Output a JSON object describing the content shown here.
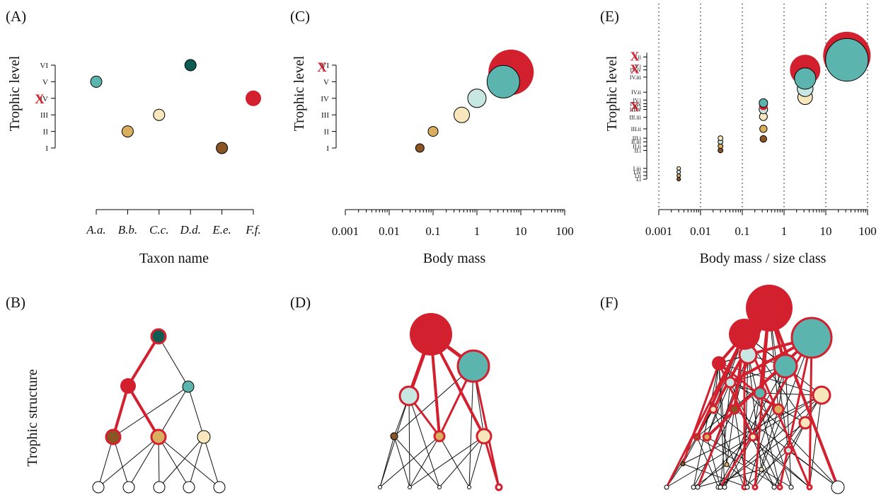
{
  "colors": {
    "red": "#d3202f",
    "teal": "#5bb5ae",
    "dark_teal": "#0d5c52",
    "light_teal": "#c8e7e3",
    "cream": "#f8e6bc",
    "tan": "#d9ae5f",
    "brown": "#8a5424",
    "white": "#ffffff",
    "grid": "#222222"
  },
  "chart_data": [
    {
      "panel": "(A)",
      "type": "scatter",
      "xlabel": "Taxon name",
      "ylabel": "Trophic level",
      "categories": [
        "A.a.",
        "B.b.",
        "C.c.",
        "D.d.",
        "E.e.",
        "F.f."
      ],
      "y_ticks": [
        {
          "value": 1,
          "label": "I"
        },
        {
          "value": 2,
          "label": "II"
        },
        {
          "value": 3,
          "label": "III"
        },
        {
          "value": 4,
          "label": "IV"
        },
        {
          "value": 5,
          "label": "V"
        },
        {
          "value": 6,
          "label": "VI"
        }
      ],
      "y_marker": {
        "value": 4,
        "label": "X"
      },
      "points": [
        {
          "category": "A.a.",
          "level": 5,
          "color": "teal"
        },
        {
          "category": "B.b.",
          "level": 2,
          "color": "tan"
        },
        {
          "category": "C.c.",
          "level": 3,
          "color": "cream"
        },
        {
          "category": "D.d.",
          "level": 6,
          "color": "dark_teal"
        },
        {
          "category": "E.e.",
          "level": 1,
          "color": "brown"
        },
        {
          "category": "F.f.",
          "level": 4,
          "color": "red",
          "no_border": true
        }
      ]
    },
    {
      "panel": "(C)",
      "type": "scatter",
      "xlabel": "Body mass",
      "ylabel": "Trophic level",
      "xscale": "log",
      "xlim": [
        0.001,
        100
      ],
      "x_ticks": [
        {
          "value": 0.001,
          "label": "0.001"
        },
        {
          "value": 0.01,
          "label": "0.01"
        },
        {
          "value": 0.1,
          "label": "0.1"
        },
        {
          "value": 1,
          "label": "1"
        },
        {
          "value": 10,
          "label": "10"
        },
        {
          "value": 100,
          "label": "100"
        }
      ],
      "y_ticks": [
        {
          "value": 1,
          "label": "I"
        },
        {
          "value": 2,
          "label": "II"
        },
        {
          "value": 3,
          "label": "III"
        },
        {
          "value": 4,
          "label": "IV"
        },
        {
          "value": 5,
          "label": "V"
        },
        {
          "value": 6,
          "label": "VI"
        }
      ],
      "y_marker": {
        "value": 6,
        "label": "X"
      },
      "points": [
        {
          "x": 0.05,
          "level": 1,
          "color": "brown"
        },
        {
          "x": 0.1,
          "level": 2,
          "color": "tan"
        },
        {
          "x": 0.45,
          "level": 3,
          "color": "cream"
        },
        {
          "x": 1.0,
          "level": 4,
          "color": "light_teal"
        },
        {
          "x": 6.0,
          "level": 6,
          "color": "red",
          "no_border": true
        },
        {
          "x": 4.0,
          "level": 5,
          "color": "teal"
        }
      ]
    },
    {
      "panel": "(E)",
      "type": "scatter",
      "xlabel": "Body mass / size class",
      "ylabel": "Trophic level",
      "xscale": "log",
      "xlim": [
        0.001,
        100
      ],
      "grid": "vertical dotted",
      "x_ticks": [
        {
          "value": 0.001,
          "label": "0.001"
        },
        {
          "value": 0.01,
          "label": "0.01"
        },
        {
          "value": 0.1,
          "label": "0.1"
        },
        {
          "value": 1,
          "label": "1"
        },
        {
          "value": 10,
          "label": "10"
        },
        {
          "value": 100,
          "label": "100"
        }
      ],
      "y_ticks": [
        {
          "value": 1.0,
          "label": "I.i"
        },
        {
          "value": 1.25,
          "label": "I.ii"
        },
        {
          "value": 1.5,
          "label": "I.iv"
        },
        {
          "value": 1.75,
          "label": "I.iii"
        },
        {
          "value": 3.0,
          "label": "II.i"
        },
        {
          "value": 3.3,
          "label": "II.ii"
        },
        {
          "value": 3.6,
          "label": "II.iii"
        },
        {
          "value": 3.85,
          "label": "III.i"
        },
        {
          "value": 4.5,
          "label": "III.ii"
        },
        {
          "value": 5.3,
          "label": "III.iii"
        },
        {
          "value": 5.85,
          "label": "III.iv"
        },
        {
          "value": 6.05,
          "label": "IV.i"
        },
        {
          "value": 6.25,
          "label": "IV.iv"
        },
        {
          "value": 6.5,
          "label": "IV.i"
        },
        {
          "value": 7.05,
          "label": "IV.ii"
        },
        {
          "value": 8.1,
          "label": "IV.iii"
        },
        {
          "value": 8.6,
          "label": "IV.iv"
        },
        {
          "value": 8.85,
          "label": "V.i"
        },
        {
          "value": 9.5,
          "label": "V.ii"
        }
      ],
      "y_markers": [
        {
          "value": 6.1,
          "label": "X"
        },
        {
          "value": 8.7,
          "label": "X"
        },
        {
          "value": 9.6,
          "label": "X"
        }
      ],
      "points": [
        {
          "x": 0.003,
          "level": 1.0,
          "size": 0.6,
          "color": "brown"
        },
        {
          "x": 0.003,
          "level": 1.25,
          "size": 0.6,
          "color": "tan"
        },
        {
          "x": 0.003,
          "level": 1.5,
          "size": 0.6,
          "color": "light_teal"
        },
        {
          "x": 0.003,
          "level": 1.75,
          "size": 0.6,
          "color": "cream"
        },
        {
          "x": 0.03,
          "level": 3.0,
          "size": 0.8,
          "color": "brown"
        },
        {
          "x": 0.03,
          "level": 3.3,
          "size": 0.8,
          "color": "tan"
        },
        {
          "x": 0.03,
          "level": 3.6,
          "size": 0.8,
          "color": "light_teal"
        },
        {
          "x": 0.03,
          "level": 3.85,
          "size": 0.8,
          "color": "cream"
        },
        {
          "x": 0.32,
          "level": 3.8,
          "size": 1.1,
          "color": "brown"
        },
        {
          "x": 0.32,
          "level": 4.5,
          "size": 1.2,
          "color": "tan"
        },
        {
          "x": 0.32,
          "level": 5.35,
          "size": 1.3,
          "color": "cream"
        },
        {
          "x": 0.32,
          "level": 5.85,
          "size": 1.4,
          "color": "light_teal"
        },
        {
          "x": 0.32,
          "level": 6.1,
          "size": 1.4,
          "color": "red",
          "no_border": true
        },
        {
          "x": 0.32,
          "level": 6.3,
          "size": 1.4,
          "color": "teal"
        },
        {
          "x": 3.2,
          "level": 6.7,
          "size": 2.4,
          "color": "cream"
        },
        {
          "x": 3.2,
          "level": 7.3,
          "size": 2.6,
          "color": "light_teal"
        },
        {
          "x": 3.2,
          "level": 8.6,
          "size": 5.0,
          "color": "red",
          "no_border": true
        },
        {
          "x": 3.2,
          "level": 8.0,
          "size": 3.5,
          "color": "teal"
        },
        {
          "x": 32,
          "level": 9.6,
          "size": 7.8,
          "color": "red",
          "no_border": true
        },
        {
          "x": 32,
          "level": 9.3,
          "size": 7.0,
          "color": "teal"
        }
      ]
    }
  ],
  "panels": {
    "A": "(A)",
    "B": "(B)",
    "C": "(C)",
    "D": "(D)",
    "E": "(E)",
    "F": "(F)"
  },
  "row_label": "Trophic structure"
}
